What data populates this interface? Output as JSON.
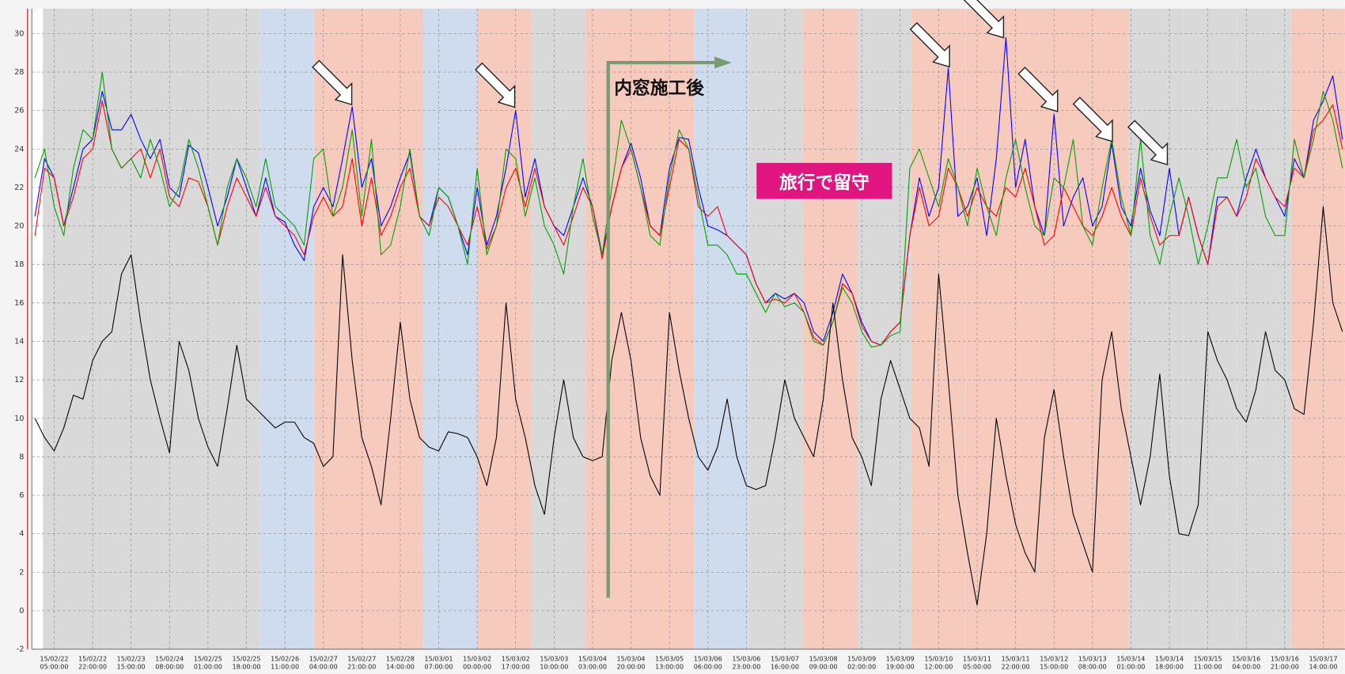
{
  "chart_data": {
    "type": "line",
    "categories": [
      null,
      null,
      "15/02/22\n05:00:00",
      null,
      null,
      null,
      "15/02/22\n22:00:00",
      null,
      null,
      null,
      "15/02/23\n15:00:00",
      null,
      null,
      null,
      "15/02/24\n08:00:00",
      null,
      null,
      null,
      "15/02/25\n01:00:00",
      null,
      null,
      null,
      "15/02/25\n18:00:00",
      null,
      null,
      null,
      "15/02/26\n11:00:00",
      null,
      null,
      null,
      "15/02/27\n04:00:00",
      null,
      null,
      null,
      "15/02/27\n21:00:00",
      null,
      null,
      null,
      "15/02/28\n14:00:00",
      null,
      null,
      null,
      "15/03/01\n07:00:00",
      null,
      null,
      null,
      "15/03/02\n00:00:00",
      null,
      null,
      null,
      "15/03/02\n17:00:00",
      null,
      null,
      null,
      "15/03/03\n10:00:00",
      null,
      null,
      null,
      "15/03/04\n03:00:00",
      null,
      null,
      null,
      "15/03/04\n20:00:00",
      null,
      null,
      null,
      "15/03/05\n13:00:00",
      null,
      null,
      null,
      "15/03/06\n06:00:00",
      null,
      null,
      null,
      "15/03/06\n23:00:00",
      null,
      null,
      null,
      "15/03/07\n16:00:00",
      null,
      null,
      null,
      "15/03/08\n09:00:00",
      null,
      null,
      null,
      "15/03/09\n02:00:00",
      null,
      null,
      null,
      "15/03/09\n19:00:00",
      null,
      null,
      null,
      "15/03/10\n12:00:00",
      null,
      null,
      null,
      "15/03/11\n05:00:00",
      null,
      null,
      null,
      "15/03/11\n22:00:00",
      null,
      null,
      null,
      "15/03/12\n15:00:00",
      null,
      null,
      null,
      "15/03/13\n08:00:00",
      null,
      null,
      null,
      "15/03/14\n01:00:00",
      null,
      null,
      null,
      "15/03/14\n18:00:00",
      null,
      null,
      null,
      "15/03/15\n11:00:00",
      null,
      null,
      null,
      "15/03/16\n04:00:00",
      null,
      null,
      null,
      "15/03/16\n21:00:00",
      null,
      null,
      null,
      "15/03/17\n14:00:00",
      null,
      null
    ],
    "series": [
      {
        "color": "#0000ff",
        "values": [
          20.5,
          23.5,
          22.5,
          20,
          22,
          24,
          24.5,
          27,
          25,
          25,
          25.8,
          24.5,
          23.5,
          24.5,
          22,
          21.5,
          24.2,
          23.8,
          22,
          20,
          21.5,
          23.5,
          22,
          20.5,
          22.5,
          20.5,
          20.2,
          19,
          18.2,
          21,
          22,
          21,
          23.5,
          26.2,
          22,
          23.5,
          20,
          21,
          22.5,
          23.8,
          20.5,
          20,
          22,
          21.5,
          20,
          18.5,
          22,
          19,
          20.5,
          23,
          26,
          21.5,
          23.5,
          21,
          20,
          19.5,
          21,
          22.5,
          21,
          18.5,
          21,
          23,
          24.3,
          22.5,
          20,
          19.5,
          23,
          24.6,
          24.5,
          22,
          20,
          19.8,
          19.5,
          19,
          18.5,
          17,
          16,
          16.5,
          16.2,
          16.5,
          16,
          14.5,
          14,
          15.5,
          17.5,
          16.5,
          15,
          14,
          13.8,
          14.5,
          15,
          19.5,
          22.5,
          20.5,
          22,
          28.2,
          20.5,
          21,
          22.5,
          19.5,
          23.5,
          29.8,
          22,
          24.5,
          21,
          19.5,
          25.8,
          20,
          21.5,
          22.5,
          20,
          21,
          24.3,
          21,
          20,
          23,
          20.8,
          19.5,
          23,
          19.5,
          21.5,
          19.5,
          18,
          21.5,
          21.5,
          20.5,
          22.5,
          24,
          22.5,
          21.5,
          20.5,
          23.5,
          22.5,
          25.5,
          26.5,
          27.8,
          24.5
        ]
      },
      {
        "color": "#ff0000",
        "values": [
          19.5,
          23,
          22.5,
          20,
          21.5,
          23.5,
          24,
          26.5,
          24,
          23,
          23.5,
          24,
          22.5,
          24,
          21.5,
          21,
          22.5,
          22.3,
          21,
          19,
          21,
          22.5,
          21.5,
          20.5,
          22,
          20.5,
          20,
          19.5,
          18.5,
          20.5,
          21.5,
          20.5,
          21,
          23.5,
          20,
          22.5,
          19.5,
          20.5,
          22,
          23,
          20.5,
          20,
          21.5,
          21,
          20,
          19,
          21,
          18.8,
          20,
          22,
          23,
          21,
          23,
          21,
          20,
          19,
          20.5,
          22,
          21,
          18.3,
          21,
          23,
          24,
          22,
          20,
          19.5,
          22,
          24.5,
          24,
          21,
          20.5,
          21,
          19.5,
          19,
          18.5,
          17,
          16,
          16.2,
          16,
          16.5,
          15.5,
          14.2,
          13.8,
          15,
          17,
          16.5,
          14.8,
          14,
          13.8,
          14.5,
          15,
          19.5,
          22,
          20,
          20.5,
          23,
          22,
          20.5,
          22,
          21,
          20.5,
          22,
          21.5,
          23,
          21,
          19,
          19.5,
          22,
          21,
          20,
          19.5,
          20.5,
          22,
          20.5,
          19.5,
          22.5,
          20.5,
          19,
          19.5,
          19.5,
          21.5,
          19.5,
          18,
          21,
          21.5,
          20.5,
          21.5,
          23.5,
          22.5,
          21.5,
          21,
          23,
          22.5,
          25,
          25.5,
          26.3,
          24
        ]
      },
      {
        "color": "#00a000",
        "values": [
          22.5,
          24,
          21,
          19.5,
          23,
          25,
          24.5,
          28,
          24,
          23,
          23.5,
          22.5,
          24.5,
          23,
          21,
          22,
          24.5,
          23,
          21,
          19,
          22,
          23.5,
          22.5,
          21,
          23.5,
          21,
          20.5,
          20,
          19,
          23.5,
          24,
          20.5,
          22,
          25,
          20.5,
          24.5,
          18.5,
          19,
          21,
          24,
          20.5,
          19.5,
          22,
          21.5,
          20,
          18,
          23,
          18.5,
          20,
          24,
          23.5,
          20.5,
          22.5,
          20,
          19,
          17.5,
          21,
          23.5,
          20.5,
          18.5,
          22,
          25.5,
          24,
          22,
          19.5,
          19,
          22.5,
          25,
          24,
          21.5,
          19,
          19,
          18.5,
          17.5,
          17.5,
          16.5,
          15.5,
          16.5,
          15.8,
          16,
          15.5,
          14,
          13.8,
          15,
          16.8,
          16,
          14.5,
          13.7,
          13.8,
          14.3,
          14.5,
          23,
          24,
          22.5,
          21,
          23.5,
          22,
          20,
          23,
          21,
          19.5,
          22.5,
          24.5,
          22,
          20,
          19.5,
          22.5,
          22,
          24.5,
          20,
          19,
          22,
          24.5,
          21.5,
          19.5,
          24.5,
          19.5,
          18,
          20.5,
          22.5,
          20.5,
          18,
          20,
          22.5,
          22.5,
          24.5,
          22,
          23,
          20.5,
          19.5,
          19.5,
          24.5,
          22.5,
          24.5,
          27,
          25.5,
          23
        ]
      },
      {
        "color": "#000000",
        "values": [
          10,
          9,
          8.3,
          9.5,
          11.2,
          11,
          13,
          14,
          14.5,
          17.5,
          18.5,
          15,
          12,
          10,
          8.2,
          14,
          12.5,
          10,
          8.5,
          7.5,
          10.5,
          13.8,
          11,
          10.5,
          10,
          9.5,
          9.8,
          9.8,
          9,
          8.7,
          7.5,
          8,
          18.5,
          13,
          9,
          7.5,
          5.5,
          10,
          15,
          11,
          9,
          8.5,
          8.3,
          9.3,
          9.2,
          9,
          8,
          6.5,
          9,
          16,
          11,
          9,
          6.5,
          5,
          9,
          12,
          9,
          8,
          7.8,
          8,
          13,
          15.5,
          13,
          9,
          7,
          6,
          15.5,
          12.5,
          10,
          8,
          7.3,
          8.5,
          11,
          8,
          6.5,
          6.3,
          6.5,
          9,
          12,
          10,
          9,
          8,
          11,
          16,
          12,
          9,
          8,
          6.5,
          11,
          13,
          11.5,
          10,
          9.5,
          7.5,
          17.5,
          12,
          6,
          3,
          0.3,
          4,
          10,
          7,
          4.5,
          3,
          2,
          9,
          11.5,
          8,
          5,
          3.5,
          2,
          12,
          14.5,
          10.5,
          8,
          5.5,
          8,
          12.3,
          7,
          4,
          3.9,
          5.5,
          14.5,
          13,
          12,
          10.5,
          9.8,
          11.5,
          14.5,
          12.5,
          12,
          10.5,
          10.2,
          15,
          21,
          16,
          14.5
        ]
      }
    ],
    "ylim": [
      -2,
      31.3
    ],
    "yticks": [
      -2,
      0,
      2,
      4,
      6,
      8,
      10,
      12,
      14,
      16,
      18,
      20,
      22,
      24,
      26,
      28,
      30
    ],
    "grid": true,
    "annotations": [
      "内窓施工後",
      "旅行で留守"
    ]
  }
}
